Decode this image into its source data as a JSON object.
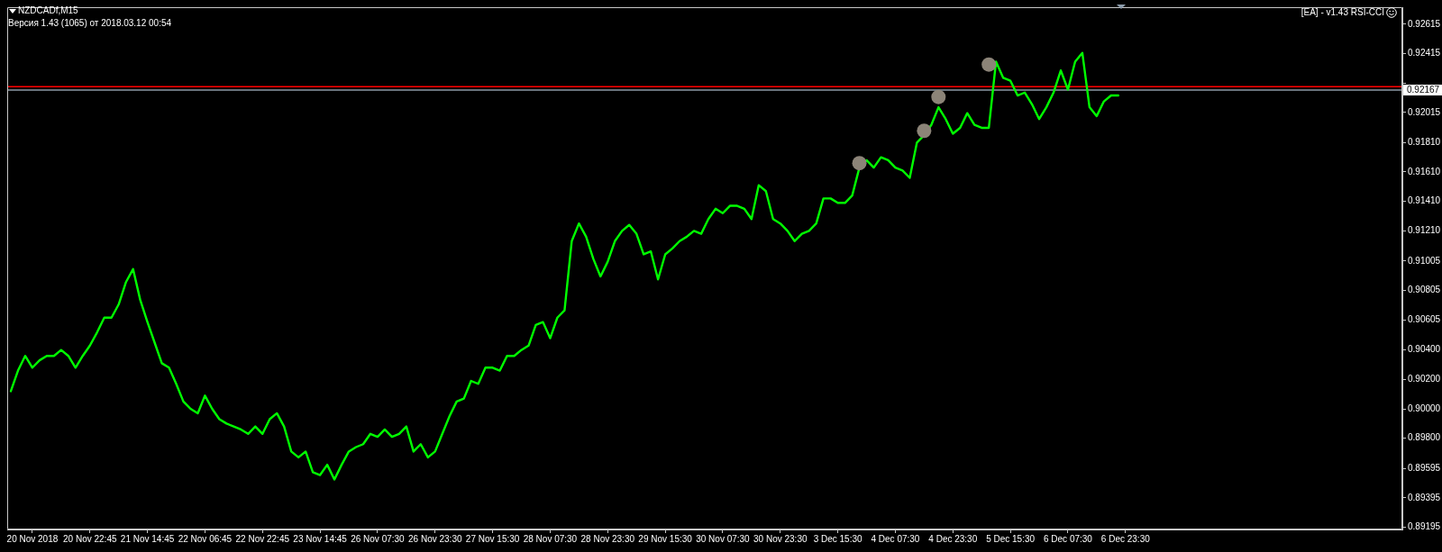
{
  "chart_data": {
    "type": "line",
    "title": "NZDCADf,M15",
    "subtitle": "Версия 1.43 (1065) от 2018.03.12 00:54",
    "annotations": [
      "[EA] - v1.43 RSI-CCI"
    ],
    "categories": [
      null,
      null,
      null,
      "20 Nov 2018",
      null,
      null,
      null,
      null,
      null,
      null,
      null,
      "20 Nov 22:45",
      null,
      null,
      null,
      null,
      null,
      null,
      null,
      "21 Nov 14:45",
      null,
      null,
      null,
      null,
      null,
      null,
      null,
      "22 Nov 06:45",
      null,
      null,
      null,
      null,
      null,
      null,
      null,
      "22 Nov 22:45",
      null,
      null,
      null,
      null,
      null,
      null,
      null,
      "23 Nov 14:45",
      null,
      null,
      null,
      null,
      null,
      null,
      null,
      "26 Nov 07:30",
      null,
      null,
      null,
      null,
      null,
      null,
      null,
      "26 Nov 23:30",
      null,
      null,
      null,
      null,
      null,
      null,
      null,
      "27 Nov 15:30",
      null,
      null,
      null,
      null,
      null,
      null,
      null,
      "28 Nov 07:30",
      null,
      null,
      null,
      null,
      null,
      null,
      null,
      "28 Nov 23:30",
      null,
      null,
      null,
      null,
      null,
      null,
      null,
      "29 Nov 15:30",
      null,
      null,
      null,
      null,
      null,
      null,
      null,
      "30 Nov 07:30",
      null,
      null,
      null,
      null,
      null,
      null,
      null,
      "30 Nov 23:30",
      null,
      null,
      null,
      null,
      null,
      null,
      null,
      "3 Dec 15:30",
      null,
      null,
      null,
      null,
      null,
      null,
      null,
      "4 Dec 07:30",
      null,
      null,
      null,
      null,
      null,
      null,
      null,
      "4 Dec 23:30",
      null,
      null,
      null,
      null,
      null,
      null,
      null,
      "5 Dec 15:30",
      null,
      null,
      null,
      null,
      null,
      null,
      null,
      "6 Dec 07:30",
      null,
      null,
      null,
      null,
      null,
      null,
      null,
      "6 Dec 23:30",
      null,
      null,
      null,
      null,
      null,
      null,
      null,
      null,
      null,
      null,
      null,
      null,
      null,
      null,
      null,
      null,
      null,
      null,
      null,
      null,
      null,
      null,
      null,
      null,
      null,
      null,
      null,
      null,
      null,
      null,
      null,
      null,
      null,
      null,
      null,
      null,
      null,
      null
    ],
    "series": [
      {
        "color": "#00ff00",
        "marker": "none",
        "values": [
          0.9012,
          0.9026,
          0.9036,
          0.9028,
          0.9033,
          0.9036,
          0.9036,
          0.904,
          0.9036,
          0.9028,
          0.9036,
          0.9043,
          0.9052,
          0.9062,
          0.9062,
          0.9071,
          0.9086,
          0.9095,
          0.9074,
          0.9059,
          0.9045,
          0.9031,
          0.9028,
          0.9017,
          0.9005,
          0.9,
          0.8997,
          0.9009,
          0.9,
          0.8993,
          0.899,
          0.8988,
          0.8986,
          0.8983,
          0.8988,
          0.8983,
          0.8993,
          0.8997,
          0.8988,
          0.8971,
          0.8967,
          0.8971,
          0.8957,
          0.8955,
          0.8962,
          0.8952,
          0.8962,
          0.8971,
          0.8974,
          0.8976,
          0.8983,
          0.8981,
          0.8986,
          0.8981,
          0.8983,
          0.8988,
          0.8971,
          0.8976,
          0.8967,
          0.8971,
          0.8983,
          0.8995,
          0.9005,
          0.9007,
          0.9019,
          0.9017,
          0.9028,
          0.9028,
          0.9026,
          0.9036,
          0.9036,
          0.904,
          0.9043,
          0.9057,
          0.9059,
          0.9048,
          0.9062,
          0.9067,
          0.9114,
          0.9126,
          0.9117,
          0.9102,
          0.909,
          0.91,
          0.9114,
          0.9121,
          0.9125,
          0.9119,
          0.9105,
          0.9107,
          0.9088,
          0.9105,
          0.9109,
          0.9114,
          0.9117,
          0.9121,
          0.9119,
          0.9129,
          0.9136,
          0.9133,
          0.9138,
          0.9138,
          0.9136,
          0.9129,
          0.9152,
          0.9148,
          0.9129,
          0.9126,
          0.9121,
          0.9114,
          0.9119,
          0.9121,
          0.9126,
          0.9143,
          0.9143,
          0.914,
          0.914,
          0.9145,
          0.9164,
          0.9169,
          0.9164,
          0.9171,
          0.9169,
          0.9164,
          0.9162,
          0.9157,
          0.9181,
          0.9186,
          0.9193,
          0.9205,
          0.9197,
          0.9187,
          0.9191,
          0.9201,
          0.9193,
          0.9191,
          0.9191,
          0.9236,
          0.9225,
          0.9223,
          0.9213,
          0.9215,
          0.9207,
          0.9197,
          0.9205,
          0.9215,
          0.923,
          0.9217,
          0.9236,
          0.9242,
          0.9205,
          0.9199,
          0.9209,
          0.9213,
          0.9213,
          null,
          null,
          null,
          null,
          null,
          null,
          null,
          null,
          null,
          null,
          null,
          null,
          null,
          null,
          null,
          null,
          null,
          null,
          null,
          null,
          null,
          null,
          null,
          null,
          null,
          null,
          null,
          null,
          null,
          null,
          null,
          null,
          null,
          null,
          null,
          null,
          null,
          null,
          null
        ]
      },
      {
        "type": "scatter",
        "color": "#8c8478",
        "marker": "circle",
        "values": [
          null,
          null,
          null,
          null,
          null,
          null,
          null,
          null,
          null,
          null,
          null,
          null,
          null,
          null,
          null,
          null,
          null,
          null,
          null,
          null,
          null,
          null,
          null,
          null,
          null,
          null,
          null,
          null,
          null,
          null,
          null,
          null,
          null,
          null,
          null,
          null,
          null,
          null,
          null,
          null,
          null,
          null,
          null,
          null,
          null,
          null,
          null,
          null,
          null,
          null,
          null,
          null,
          null,
          null,
          null,
          null,
          null,
          null,
          null,
          null,
          null,
          null,
          null,
          null,
          null,
          null,
          null,
          null,
          null,
          null,
          null,
          null,
          null,
          null,
          null,
          null,
          null,
          null,
          null,
          null,
          null,
          null,
          null,
          null,
          null,
          null,
          null,
          null,
          null,
          null,
          null,
          null,
          null,
          null,
          null,
          null,
          null,
          null,
          null,
          null,
          null,
          null,
          null,
          null,
          null,
          null,
          null,
          null,
          null,
          null,
          null,
          null,
          null,
          null,
          null,
          null,
          null,
          null,
          0.9167,
          null,
          null,
          null,
          null,
          null,
          null,
          null,
          null,
          0.9189,
          null,
          0.9212,
          null,
          null,
          null,
          null,
          null,
          null,
          0.9234,
          null,
          null,
          null,
          null,
          null,
          null,
          null,
          null,
          null,
          null,
          null,
          null,
          null,
          null,
          null,
          null,
          null,
          null,
          null,
          null,
          null,
          null,
          null,
          null,
          null,
          null,
          null,
          null,
          null,
          null,
          null,
          null,
          null,
          null,
          null,
          null,
          null,
          null,
          null,
          null,
          null,
          null,
          null,
          null,
          null,
          null,
          null,
          null,
          null,
          null,
          null,
          null,
          null,
          null,
          null,
          null,
          null
        ]
      }
    ],
    "ylim": [
      0.8918,
      0.9273
    ],
    "yticks": [
      {
        "value": 0.89195,
        "label": "0.89195"
      },
      {
        "value": 0.89395,
        "label": "0.89395"
      },
      {
        "value": 0.89595,
        "label": "0.89595"
      },
      {
        "value": 0.898,
        "label": "0.89800"
      },
      {
        "value": 0.9,
        "label": "0.90000"
      },
      {
        "value": 0.902,
        "label": "0.90200"
      },
      {
        "value": 0.904,
        "label": "0.90400"
      },
      {
        "value": 0.90605,
        "label": "0.90605"
      },
      {
        "value": 0.90805,
        "label": "0.90805"
      },
      {
        "value": 0.91005,
        "label": "0.91005"
      },
      {
        "value": 0.9121,
        "label": "0.91210"
      },
      {
        "value": 0.9141,
        "label": "0.91410"
      },
      {
        "value": 0.9161,
        "label": "0.91610"
      },
      {
        "value": 0.9181,
        "label": "0.91810"
      },
      {
        "value": 0.92015,
        "label": "0.92015"
      },
      {
        "value": 0.92215,
        "label": null
      },
      {
        "value": 0.92415,
        "label": "0.92415"
      },
      {
        "value": 0.92615,
        "label": "0.92615"
      }
    ],
    "ref_lines": [
      {
        "axis": "y",
        "value": 0.9219,
        "color": "#ff0000"
      },
      {
        "axis": "y",
        "value": 0.92167,
        "label": "0.92167",
        "color": "#8c9aa6"
      }
    ]
  }
}
